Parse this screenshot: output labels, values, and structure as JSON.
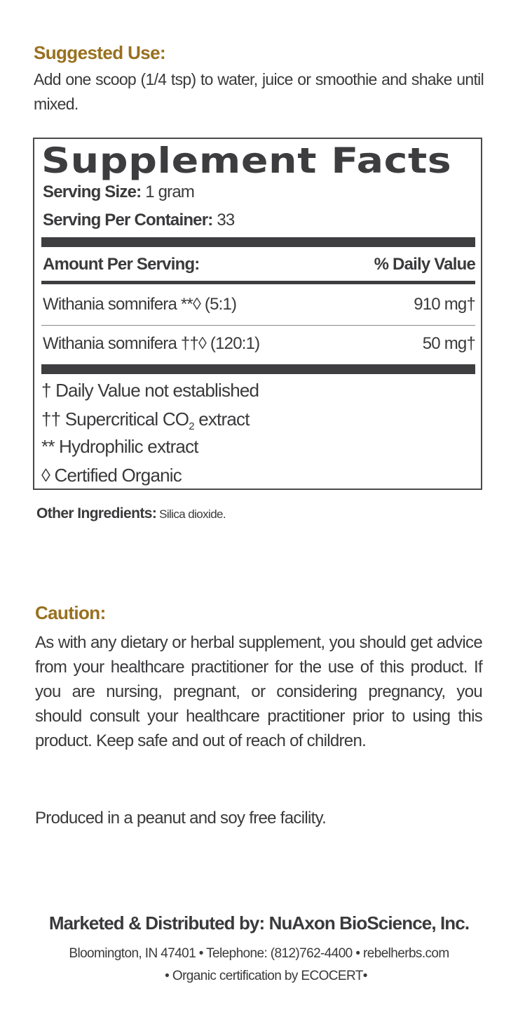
{
  "suggested_use": {
    "heading": "Suggested Use:",
    "text": "Add one scoop (1/4 tsp) to water, juice or smoothie and shake until mixed."
  },
  "supplement_facts": {
    "title": "Supplement Facts",
    "serving_size_label": "Serving Size:",
    "serving_size_value": "1 gram",
    "servings_per_container_label": "Serving Per Container:",
    "servings_per_container_value": "33",
    "amount_header": "Amount Per Serving:",
    "dv_header": "% Daily Value",
    "rows": [
      {
        "ingredient": "Withania somnifera **◊ (5:1)",
        "amount": "910 mg†"
      },
      {
        "ingredient": "Withania somnifera ††◊ (120:1)",
        "amount": "50 mg†"
      }
    ],
    "footnotes": [
      "† Daily Value not established",
      "†† Supercritical CO",
      "2",
      " extract",
      "** Hydrophilic extract",
      "◊ Certified Organic"
    ]
  },
  "other_ingredients": {
    "label": "Other Ingredients:",
    "value": "Silica dioxide."
  },
  "caution": {
    "heading": "Caution:",
    "text": "As with any dietary or herbal supplement, you should get advice from your healthcare practitioner for the use of this product. If you are nursing, pregnant, or considering pregnancy, you should consult your healthcare practitioner prior to using this product. Keep safe and out of reach of children.",
    "facility": "Produced in a peanut and soy free facility."
  },
  "footer": {
    "marketed": "Marketed & Distributed by: NuAxon BioScience, Inc.",
    "address": "Bloomington, IN 47401 • Telephone: (812)762-4400 • rebelherbs.com",
    "certification": "• Organic certification by ECOCERT•"
  },
  "colors": {
    "heading": "#98701f",
    "text": "#3a3a3c",
    "bars": "#3e3e40"
  }
}
